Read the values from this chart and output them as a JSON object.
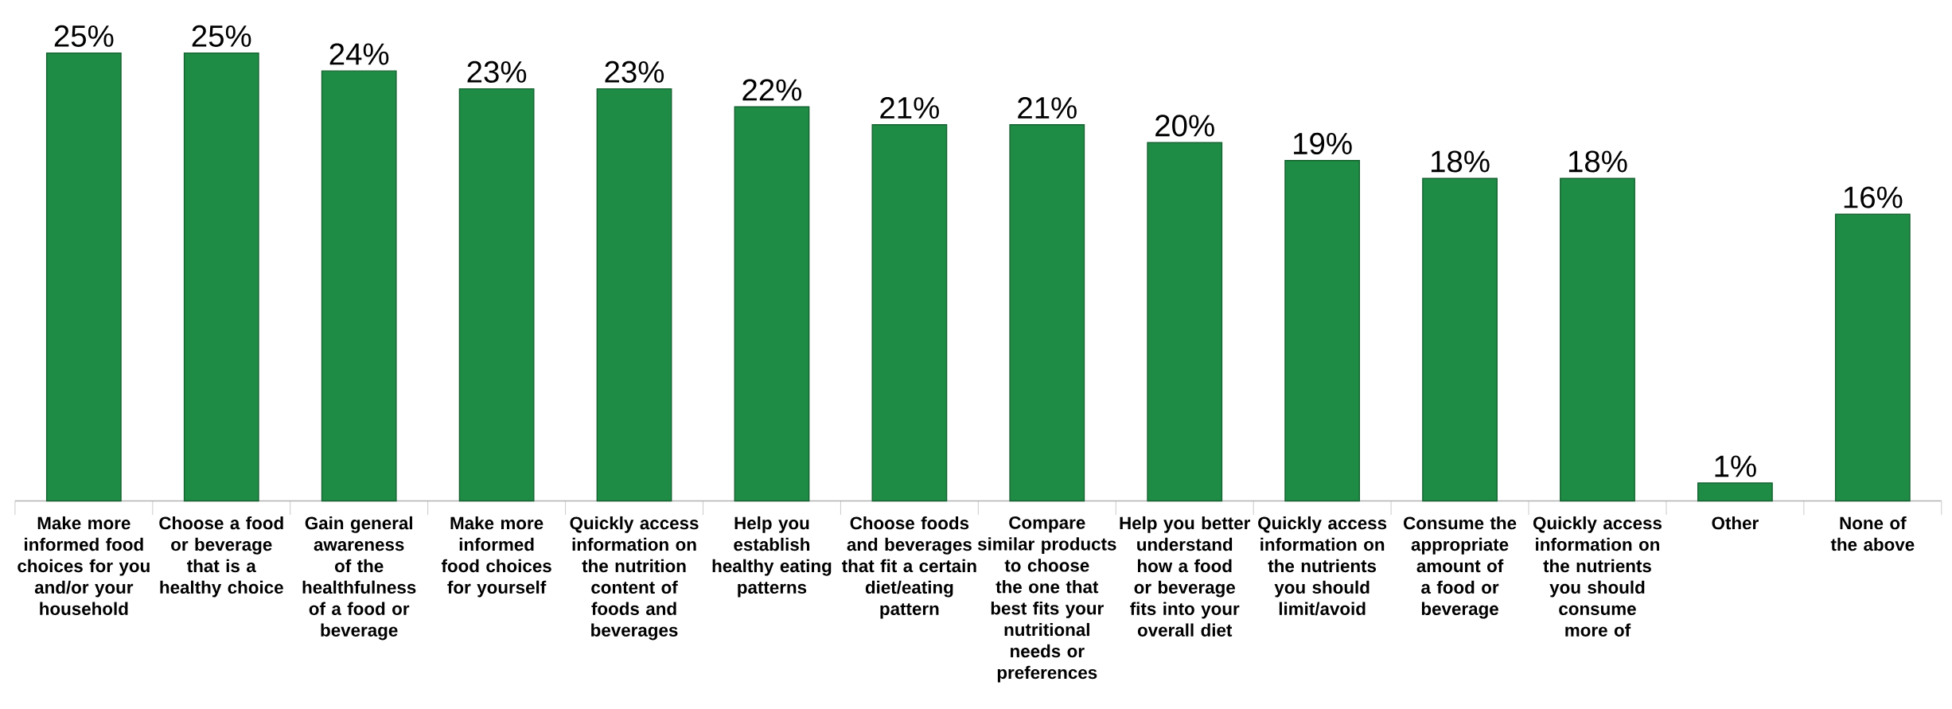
{
  "chart_data": {
    "type": "bar",
    "categories": [
      "Make more informed food choices for you and/or your household",
      "Choose a food or beverage that is a healthy choice",
      "Gain general awareness of the healthfulness of a food or beverage",
      "Make more informed food choices for yourself",
      "Quickly access information on the nutrition content of foods and beverages",
      "Help you establish healthy eating patterns",
      "Choose foods and beverages that fit a certain diet/eating pattern",
      "Compare similar products to choose the one that best fits your nutritional needs or preferences",
      "Help you better understand how a food or beverage fits into your overall diet",
      "Quickly access information on the nutrients you should limit/avoid",
      "Consume the appropriate amount of a food or beverage",
      "Quickly access information on the nutrients you should consume more of",
      "Other",
      "None of the above"
    ],
    "values": [
      25,
      25,
      24,
      23,
      23,
      22,
      21,
      21,
      20,
      19,
      18,
      18,
      1,
      16
    ],
    "value_labels": [
      "25%",
      "25%",
      "24%",
      "23%",
      "23%",
      "22%",
      "21%",
      "21%",
      "20%",
      "19%",
      "18%",
      "18%",
      "1%",
      "16%"
    ],
    "color": "#1e8c45"
  }
}
